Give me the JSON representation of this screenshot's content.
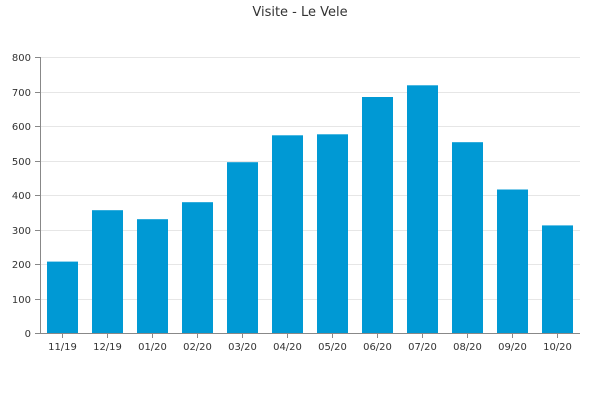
{
  "colors": {
    "bar": "#0099d4",
    "axis": "#888888",
    "grid": "#e6e6e6",
    "text": "#333333",
    "background": "#ffffff"
  },
  "chart_data": {
    "type": "bar",
    "title": "Visite - Le Vele",
    "xlabel": "",
    "ylabel": "",
    "categories": [
      "11/19",
      "12/19",
      "01/20",
      "02/20",
      "03/20",
      "04/20",
      "05/20",
      "06/20",
      "07/20",
      "08/20",
      "09/20",
      "10/20"
    ],
    "series": [
      {
        "values": [
          207,
          356,
          330,
          379,
          495,
          573,
          576,
          684,
          718,
          553,
          416,
          312
        ]
      }
    ],
    "ylim": [
      0,
      800
    ],
    "yticks": [
      0,
      100,
      200,
      300,
      400,
      500,
      600,
      700,
      800
    ],
    "grid": true,
    "legend": "none"
  }
}
